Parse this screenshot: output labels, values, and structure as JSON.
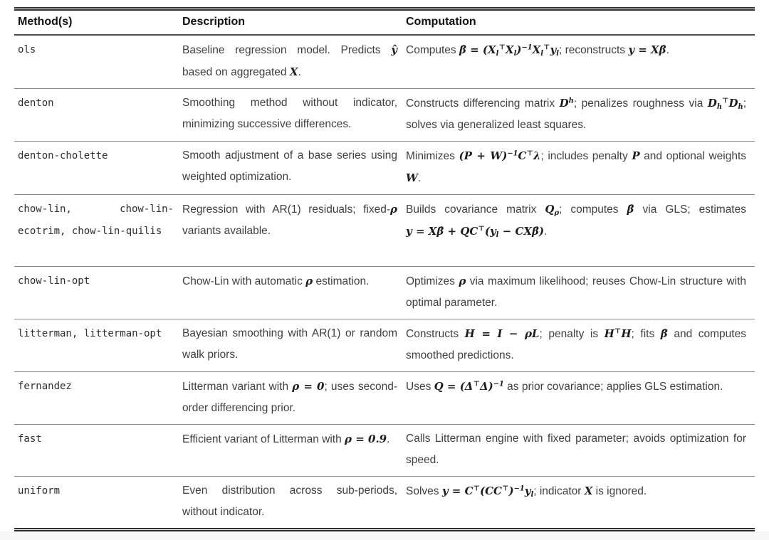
{
  "table": {
    "headers": [
      {
        "label": "Method(s)"
      },
      {
        "label": "Description"
      },
      {
        "label": "Computation"
      }
    ],
    "rows": [
      {
        "method": "ols",
        "description": [
          {
            "t": "Baseline regression model. Predicts "
          },
          {
            "m": "ŷ"
          },
          {
            "t": " based on aggregated "
          },
          {
            "m": "X"
          },
          {
            "t": "."
          }
        ],
        "computation": [
          {
            "t": "Computes "
          },
          {
            "m": "β̂ = (X_{l}^{⊤}X_{l})^{−1}X_{l}^{⊤}y_{l}"
          },
          {
            "t": "; reconstructs "
          },
          {
            "m": "y = Xβ̂"
          },
          {
            "t": "."
          }
        ]
      },
      {
        "method": "denton",
        "description": [
          {
            "t": "Smoothing method without indicator, minimizing successive differences."
          }
        ],
        "computation": [
          {
            "t": "Constructs differencing matrix "
          },
          {
            "m": "D^{h}"
          },
          {
            "t": "; penalizes roughness via "
          },
          {
            "m": "D_{h}^{⊤}D_{h}"
          },
          {
            "t": "; solves via generalized least squares."
          }
        ]
      },
      {
        "method": "denton-cholette",
        "description": [
          {
            "t": "Smooth adjustment of a base series using weighted optimization."
          }
        ],
        "computation": [
          {
            "t": "Minimizes "
          },
          {
            "m": "(P + W)^{−1}C^{⊤}λ"
          },
          {
            "t": "; includes penalty "
          },
          {
            "m": "P"
          },
          {
            "t": " and optional weights "
          },
          {
            "m": "W"
          },
          {
            "t": "."
          }
        ]
      },
      {
        "method": "chow-lin, chow-lin-ecotrim, chow-lin-quilis",
        "description": [
          {
            "t": "Regression with AR(1) residuals; fixed-"
          },
          {
            "m": "ρ"
          },
          {
            "t": " variants available."
          }
        ],
        "computation": [
          {
            "t": "Builds covariance matrix "
          },
          {
            "m": "Q_{ρ}"
          },
          {
            "t": "; computes "
          },
          {
            "m": "β̂"
          },
          {
            "t": " via GLS; estimates "
          },
          {
            "m": "y = Xβ̂ + QC^{⊤}(y_{l} − CXβ̂)"
          },
          {
            "t": "."
          }
        ]
      },
      {
        "method": "chow-lin-opt",
        "description": [
          {
            "t": "Chow-Lin with automatic "
          },
          {
            "m": "ρ"
          },
          {
            "t": " estimation."
          }
        ],
        "computation": [
          {
            "t": "Optimizes "
          },
          {
            "m": "ρ"
          },
          {
            "t": " via maximum likelihood; reuses Chow-Lin structure with optimal parameter."
          }
        ]
      },
      {
        "method": "litterman, litterman-opt",
        "description": [
          {
            "t": "Bayesian smoothing with AR(1) or random walk priors."
          }
        ],
        "computation": [
          {
            "t": "Constructs "
          },
          {
            "m": "H = I − ρL"
          },
          {
            "t": "; penalty is "
          },
          {
            "m": "H^{⊤}H"
          },
          {
            "t": "; fits "
          },
          {
            "m": "β̂"
          },
          {
            "t": " and computes smoothed predictions."
          }
        ]
      },
      {
        "method": "fernandez",
        "description": [
          {
            "t": "Litterman variant with "
          },
          {
            "m": "ρ = 0"
          },
          {
            "t": "; uses second-order differencing prior."
          }
        ],
        "computation": [
          {
            "t": "Uses "
          },
          {
            "m": "Q = (Δ^{⊤}Δ)^{−1}"
          },
          {
            "t": " as prior covariance; applies GLS estimation."
          }
        ]
      },
      {
        "method": "fast",
        "description": [
          {
            "t": "Efficient variant of Litterman with "
          },
          {
            "m": "ρ = 0.9"
          },
          {
            "t": "."
          }
        ],
        "computation": [
          {
            "t": "Calls Litterman engine with fixed parameter; avoids optimization for speed."
          }
        ]
      },
      {
        "method": "uniform",
        "description": [
          {
            "t": "Even distribution across sub-periods, without indicator."
          }
        ],
        "computation": [
          {
            "t": "Solves "
          },
          {
            "m": "y = C^{⊤}(CC^{⊤})^{−1}y_{l}"
          },
          {
            "t": "; indicator "
          },
          {
            "m": "X"
          },
          {
            "t": " is ignored."
          }
        ]
      }
    ]
  }
}
